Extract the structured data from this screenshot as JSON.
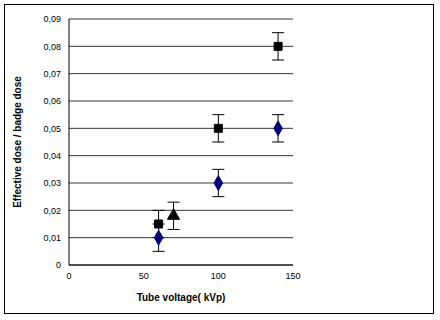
{
  "chart_data": {
    "type": "scatter",
    "x_label": "Tube voltage( kVp)",
    "y_label": "Effective dose / badge dose",
    "xlim": [
      0,
      150
    ],
    "xticks": [
      0,
      50,
      100,
      150
    ],
    "ylim": [
      0,
      0.09
    ],
    "yticks": [
      0,
      {
        "value": 0.01,
        "label": "0,01"
      },
      {
        "value": 0.02,
        "label": "0,02"
      },
      {
        "value": 0.03,
        "label": "0,03"
      },
      {
        "value": 0.04,
        "label": "0,04"
      },
      {
        "value": 0.05,
        "label": "0,05"
      },
      {
        "value": 0.06,
        "label": "0,06"
      },
      {
        "value": 0.07,
        "label": "0,07"
      },
      {
        "value": 0.08,
        "label": "0,08"
      },
      {
        "value": 0.09,
        "label": "0,09"
      }
    ],
    "grid": true,
    "series": [
      {
        "color": "#000000",
        "marker": "square",
        "x": [
          60,
          100,
          140
        ],
        "values": [
          0.015,
          0.05,
          0.08
        ],
        "errors": [
          0.005,
          0.005,
          0.005
        ]
      },
      {
        "color": "#000080",
        "marker": "diamond",
        "x": [
          60,
          100,
          140
        ],
        "values": [
          0.01,
          0.03,
          0.05
        ],
        "errors": [
          0.005,
          0.005,
          0.005
        ]
      },
      {
        "color": "#000000",
        "marker": "triangle",
        "x": [
          70
        ],
        "values": [
          0.018
        ],
        "errors": [
          0.005
        ]
      }
    ]
  }
}
